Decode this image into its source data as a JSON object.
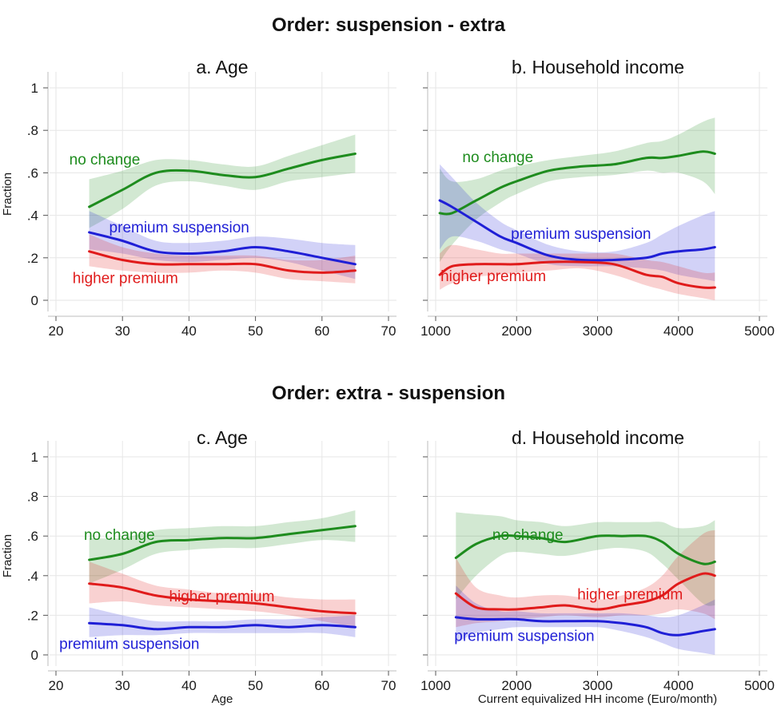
{
  "titles": [
    "Order: suspension - extra",
    "Order: extra - suspension"
  ],
  "colors": {
    "no_change": "#1e8c1e",
    "premium_suspension": "#1f1fd6",
    "higher_premium": "#e01b1b"
  },
  "chart_data": [
    {
      "type": "line",
      "panel_title": "a. Age",
      "group_title": "Order: suspension - extra",
      "xlabel": "",
      "ylabel": "Fraction",
      "xlim": [
        20,
        70
      ],
      "ylim": [
        0,
        1
      ],
      "xticks": [
        20,
        30,
        40,
        50,
        60,
        70
      ],
      "xtick_labels": [
        "20",
        "30",
        "40",
        "50",
        "60",
        "70"
      ],
      "yticks": [
        0,
        0.2,
        0.4,
        0.6,
        0.8,
        1
      ],
      "ytick_labels": [
        "0",
        ".2",
        ".4",
        ".6",
        ".8",
        "1"
      ],
      "grid": true,
      "series": [
        {
          "name": "no change",
          "color_key": "no_change",
          "x": [
            25,
            30,
            35,
            40,
            45,
            50,
            55,
            60,
            65
          ],
          "y": [
            0.44,
            0.52,
            0.6,
            0.61,
            0.59,
            0.58,
            0.62,
            0.66,
            0.69
          ],
          "lower": [
            0.34,
            0.43,
            0.54,
            0.56,
            0.54,
            0.52,
            0.56,
            0.58,
            0.6
          ],
          "upper": [
            0.57,
            0.61,
            0.66,
            0.66,
            0.64,
            0.63,
            0.68,
            0.73,
            0.78
          ]
        },
        {
          "name": "premium suspension",
          "color_key": "premium_suspension",
          "x": [
            25,
            30,
            35,
            40,
            45,
            50,
            55,
            60,
            65
          ],
          "y": [
            0.32,
            0.28,
            0.23,
            0.22,
            0.23,
            0.25,
            0.23,
            0.2,
            0.17
          ],
          "lower": [
            0.24,
            0.22,
            0.19,
            0.18,
            0.19,
            0.2,
            0.18,
            0.14,
            0.1
          ],
          "upper": [
            0.42,
            0.35,
            0.28,
            0.27,
            0.28,
            0.3,
            0.29,
            0.27,
            0.26
          ]
        },
        {
          "name": "higher premium",
          "color_key": "higher_premium",
          "x": [
            25,
            30,
            35,
            40,
            45,
            50,
            55,
            60,
            65
          ],
          "y": [
            0.23,
            0.19,
            0.17,
            0.17,
            0.17,
            0.17,
            0.14,
            0.13,
            0.14
          ],
          "lower": [
            0.16,
            0.14,
            0.13,
            0.13,
            0.14,
            0.13,
            0.1,
            0.09,
            0.08
          ],
          "upper": [
            0.31,
            0.25,
            0.22,
            0.21,
            0.21,
            0.21,
            0.19,
            0.19,
            0.21
          ]
        }
      ],
      "labels": [
        {
          "text": "no change",
          "color_key": "no_change",
          "x": 22,
          "y": 0.64
        },
        {
          "text": "premium suspension",
          "color_key": "premium_suspension",
          "x": 28,
          "y": 0.32
        },
        {
          "text": "higher premium",
          "color_key": "higher_premium",
          "x": 22.5,
          "y": 0.08
        }
      ]
    },
    {
      "type": "line",
      "panel_title": "b. Household income",
      "group_title": "Order: suspension - extra",
      "xlabel": "",
      "ylabel": "",
      "xlim": [
        1000,
        5000
      ],
      "ylim": [
        0,
        1
      ],
      "xticks": [
        1000,
        2000,
        3000,
        4000,
        5000
      ],
      "xtick_labels": [
        "1000",
        "2000",
        "3000",
        "4000",
        "5000"
      ],
      "yticks": [
        0,
        0.2,
        0.4,
        0.6,
        0.8,
        1
      ],
      "ytick_labels": [
        "",
        "",
        "",
        "",
        "",
        ""
      ],
      "grid": true,
      "series": [
        {
          "name": "no change",
          "color_key": "no_change",
          "x": [
            1050,
            1200,
            1500,
            1800,
            2000,
            2400,
            2800,
            3200,
            3600,
            3800,
            4000,
            4300,
            4450
          ],
          "y": [
            0.41,
            0.41,
            0.47,
            0.53,
            0.56,
            0.61,
            0.63,
            0.64,
            0.67,
            0.67,
            0.68,
            0.7,
            0.69
          ],
          "lower": [
            0.18,
            0.26,
            0.38,
            0.46,
            0.5,
            0.56,
            0.58,
            0.59,
            0.61,
            0.6,
            0.6,
            0.56,
            0.5
          ],
          "upper": [
            0.62,
            0.56,
            0.57,
            0.61,
            0.63,
            0.66,
            0.68,
            0.7,
            0.74,
            0.75,
            0.78,
            0.84,
            0.86
          ]
        },
        {
          "name": "premium suspension",
          "color_key": "premium_suspension",
          "x": [
            1050,
            1200,
            1500,
            1800,
            2000,
            2400,
            2800,
            3200,
            3600,
            3800,
            4000,
            4300,
            4450
          ],
          "y": [
            0.47,
            0.44,
            0.37,
            0.3,
            0.27,
            0.21,
            0.19,
            0.19,
            0.2,
            0.22,
            0.23,
            0.24,
            0.25
          ],
          "lower": [
            0.24,
            0.3,
            0.28,
            0.24,
            0.22,
            0.17,
            0.16,
            0.16,
            0.15,
            0.14,
            0.12,
            0.1,
            0.09
          ],
          "upper": [
            0.64,
            0.58,
            0.46,
            0.37,
            0.33,
            0.26,
            0.23,
            0.23,
            0.27,
            0.31,
            0.35,
            0.4,
            0.42
          ]
        },
        {
          "name": "higher premium",
          "color_key": "higher_premium",
          "x": [
            1050,
            1200,
            1500,
            1800,
            2000,
            2400,
            2800,
            3200,
            3600,
            3800,
            4000,
            4300,
            4450
          ],
          "y": [
            0.12,
            0.16,
            0.17,
            0.17,
            0.17,
            0.18,
            0.18,
            0.17,
            0.12,
            0.11,
            0.08,
            0.06,
            0.06
          ],
          "lower": [
            0.05,
            0.08,
            0.11,
            0.12,
            0.13,
            0.14,
            0.15,
            0.12,
            0.07,
            0.05,
            0.03,
            0.01,
            0.0
          ],
          "upper": [
            0.22,
            0.26,
            0.24,
            0.22,
            0.22,
            0.22,
            0.22,
            0.22,
            0.19,
            0.18,
            0.16,
            0.13,
            0.13
          ]
        }
      ],
      "labels": [
        {
          "text": "no change",
          "color_key": "no_change",
          "x": 1330,
          "y": 0.65
        },
        {
          "text": "premium suspension",
          "color_key": "premium_suspension",
          "x": 1930,
          "y": 0.29
        },
        {
          "text": "higher premium",
          "color_key": "higher_premium",
          "x": 1060,
          "y": 0.09
        }
      ]
    },
    {
      "type": "line",
      "panel_title": "c. Age",
      "group_title": "Order: extra - suspension",
      "xlabel": "Age",
      "ylabel": "Fraction",
      "xlim": [
        20,
        70
      ],
      "ylim": [
        0,
        1
      ],
      "xticks": [
        20,
        30,
        40,
        50,
        60,
        70
      ],
      "xtick_labels": [
        "20",
        "30",
        "40",
        "50",
        "60",
        "70"
      ],
      "yticks": [
        0,
        0.2,
        0.4,
        0.6,
        0.8,
        1
      ],
      "ytick_labels": [
        "0",
        ".2",
        ".4",
        ".6",
        ".8",
        "1"
      ],
      "grid": true,
      "series": [
        {
          "name": "no change",
          "color_key": "no_change",
          "x": [
            25,
            30,
            35,
            40,
            45,
            50,
            55,
            60,
            65
          ],
          "y": [
            0.48,
            0.51,
            0.57,
            0.58,
            0.59,
            0.59,
            0.61,
            0.63,
            0.65
          ],
          "lower": [
            0.36,
            0.43,
            0.51,
            0.53,
            0.54,
            0.54,
            0.56,
            0.58,
            0.57
          ],
          "upper": [
            0.59,
            0.59,
            0.63,
            0.64,
            0.65,
            0.65,
            0.67,
            0.69,
            0.73
          ]
        },
        {
          "name": "higher premium",
          "color_key": "higher_premium",
          "x": [
            25,
            30,
            35,
            40,
            45,
            50,
            55,
            60,
            65
          ],
          "y": [
            0.36,
            0.34,
            0.3,
            0.28,
            0.27,
            0.26,
            0.24,
            0.22,
            0.21
          ],
          "lower": [
            0.26,
            0.27,
            0.25,
            0.24,
            0.23,
            0.22,
            0.2,
            0.17,
            0.14
          ],
          "upper": [
            0.47,
            0.41,
            0.35,
            0.33,
            0.31,
            0.31,
            0.29,
            0.28,
            0.28
          ]
        },
        {
          "name": "premium suspension",
          "color_key": "premium_suspension",
          "x": [
            25,
            30,
            35,
            40,
            45,
            50,
            55,
            60,
            65
          ],
          "y": [
            0.16,
            0.15,
            0.13,
            0.14,
            0.14,
            0.15,
            0.14,
            0.15,
            0.14
          ],
          "lower": [
            0.09,
            0.1,
            0.1,
            0.11,
            0.11,
            0.11,
            0.11,
            0.11,
            0.09
          ],
          "upper": [
            0.24,
            0.2,
            0.17,
            0.17,
            0.17,
            0.18,
            0.18,
            0.19,
            0.2
          ]
        }
      ],
      "labels": [
        {
          "text": "no change",
          "color_key": "no_change",
          "x": 24.2,
          "y": 0.58
        },
        {
          "text": "higher premium",
          "color_key": "higher_premium",
          "x": 37,
          "y": 0.27
        },
        {
          "text": "premium suspension",
          "color_key": "premium_suspension",
          "x": 20.5,
          "y": 0.03
        }
      ]
    },
    {
      "type": "line",
      "panel_title": "d. Household income",
      "group_title": "Order: extra - suspension",
      "xlabel": "Current equivalized HH income (Euro/month)",
      "ylabel": "",
      "xlim": [
        1000,
        5000
      ],
      "ylim": [
        0,
        1
      ],
      "xticks": [
        1000,
        2000,
        3000,
        4000,
        5000
      ],
      "xtick_labels": [
        "1000",
        "2000",
        "3000",
        "4000",
        "5000"
      ],
      "yticks": [
        0,
        0.2,
        0.4,
        0.6,
        0.8,
        1
      ],
      "ytick_labels": [
        "",
        "",
        "",
        "",
        "",
        ""
      ],
      "grid": true,
      "series": [
        {
          "name": "no change",
          "color_key": "no_change",
          "x": [
            1250,
            1500,
            1800,
            2000,
            2300,
            2600,
            3000,
            3300,
            3600,
            3800,
            4000,
            4300,
            4450
          ],
          "y": [
            0.49,
            0.56,
            0.6,
            0.6,
            0.59,
            0.57,
            0.6,
            0.6,
            0.6,
            0.57,
            0.51,
            0.46,
            0.47
          ],
          "lower": [
            0.28,
            0.4,
            0.5,
            0.52,
            0.51,
            0.5,
            0.53,
            0.54,
            0.52,
            0.46,
            0.38,
            0.26,
            0.25
          ],
          "upper": [
            0.72,
            0.71,
            0.7,
            0.68,
            0.67,
            0.65,
            0.67,
            0.67,
            0.67,
            0.67,
            0.64,
            0.65,
            0.68
          ]
        },
        {
          "name": "higher premium",
          "color_key": "higher_premium",
          "x": [
            1250,
            1500,
            1800,
            2000,
            2300,
            2600,
            3000,
            3300,
            3600,
            3800,
            4000,
            4300,
            4450
          ],
          "y": [
            0.31,
            0.24,
            0.23,
            0.23,
            0.24,
            0.25,
            0.23,
            0.25,
            0.27,
            0.3,
            0.36,
            0.41,
            0.4
          ],
          "lower": [
            0.14,
            0.16,
            0.17,
            0.18,
            0.19,
            0.2,
            0.19,
            0.2,
            0.2,
            0.21,
            0.23,
            0.21,
            0.18
          ],
          "upper": [
            0.49,
            0.34,
            0.3,
            0.29,
            0.3,
            0.3,
            0.28,
            0.3,
            0.34,
            0.4,
            0.5,
            0.61,
            0.63
          ]
        },
        {
          "name": "premium suspension",
          "color_key": "premium_suspension",
          "x": [
            1250,
            1500,
            1800,
            2000,
            2300,
            2600,
            3000,
            3300,
            3600,
            3800,
            4000,
            4300,
            4450
          ],
          "y": [
            0.19,
            0.18,
            0.18,
            0.18,
            0.17,
            0.17,
            0.17,
            0.16,
            0.14,
            0.11,
            0.1,
            0.12,
            0.13
          ],
          "lower": [
            0.06,
            0.11,
            0.13,
            0.14,
            0.14,
            0.14,
            0.14,
            0.12,
            0.09,
            0.06,
            0.03,
            0.01,
            0.0
          ],
          "upper": [
            0.35,
            0.26,
            0.22,
            0.22,
            0.21,
            0.21,
            0.21,
            0.21,
            0.2,
            0.19,
            0.2,
            0.25,
            0.28
          ]
        }
      ],
      "labels": [
        {
          "text": "no change",
          "color_key": "no_change",
          "x": 1700,
          "y": 0.58
        },
        {
          "text": "higher premium",
          "color_key": "higher_premium",
          "x": 2750,
          "y": 0.28
        },
        {
          "text": "premium suspension",
          "color_key": "premium_suspension",
          "x": 1230,
          "y": 0.07
        }
      ]
    }
  ]
}
